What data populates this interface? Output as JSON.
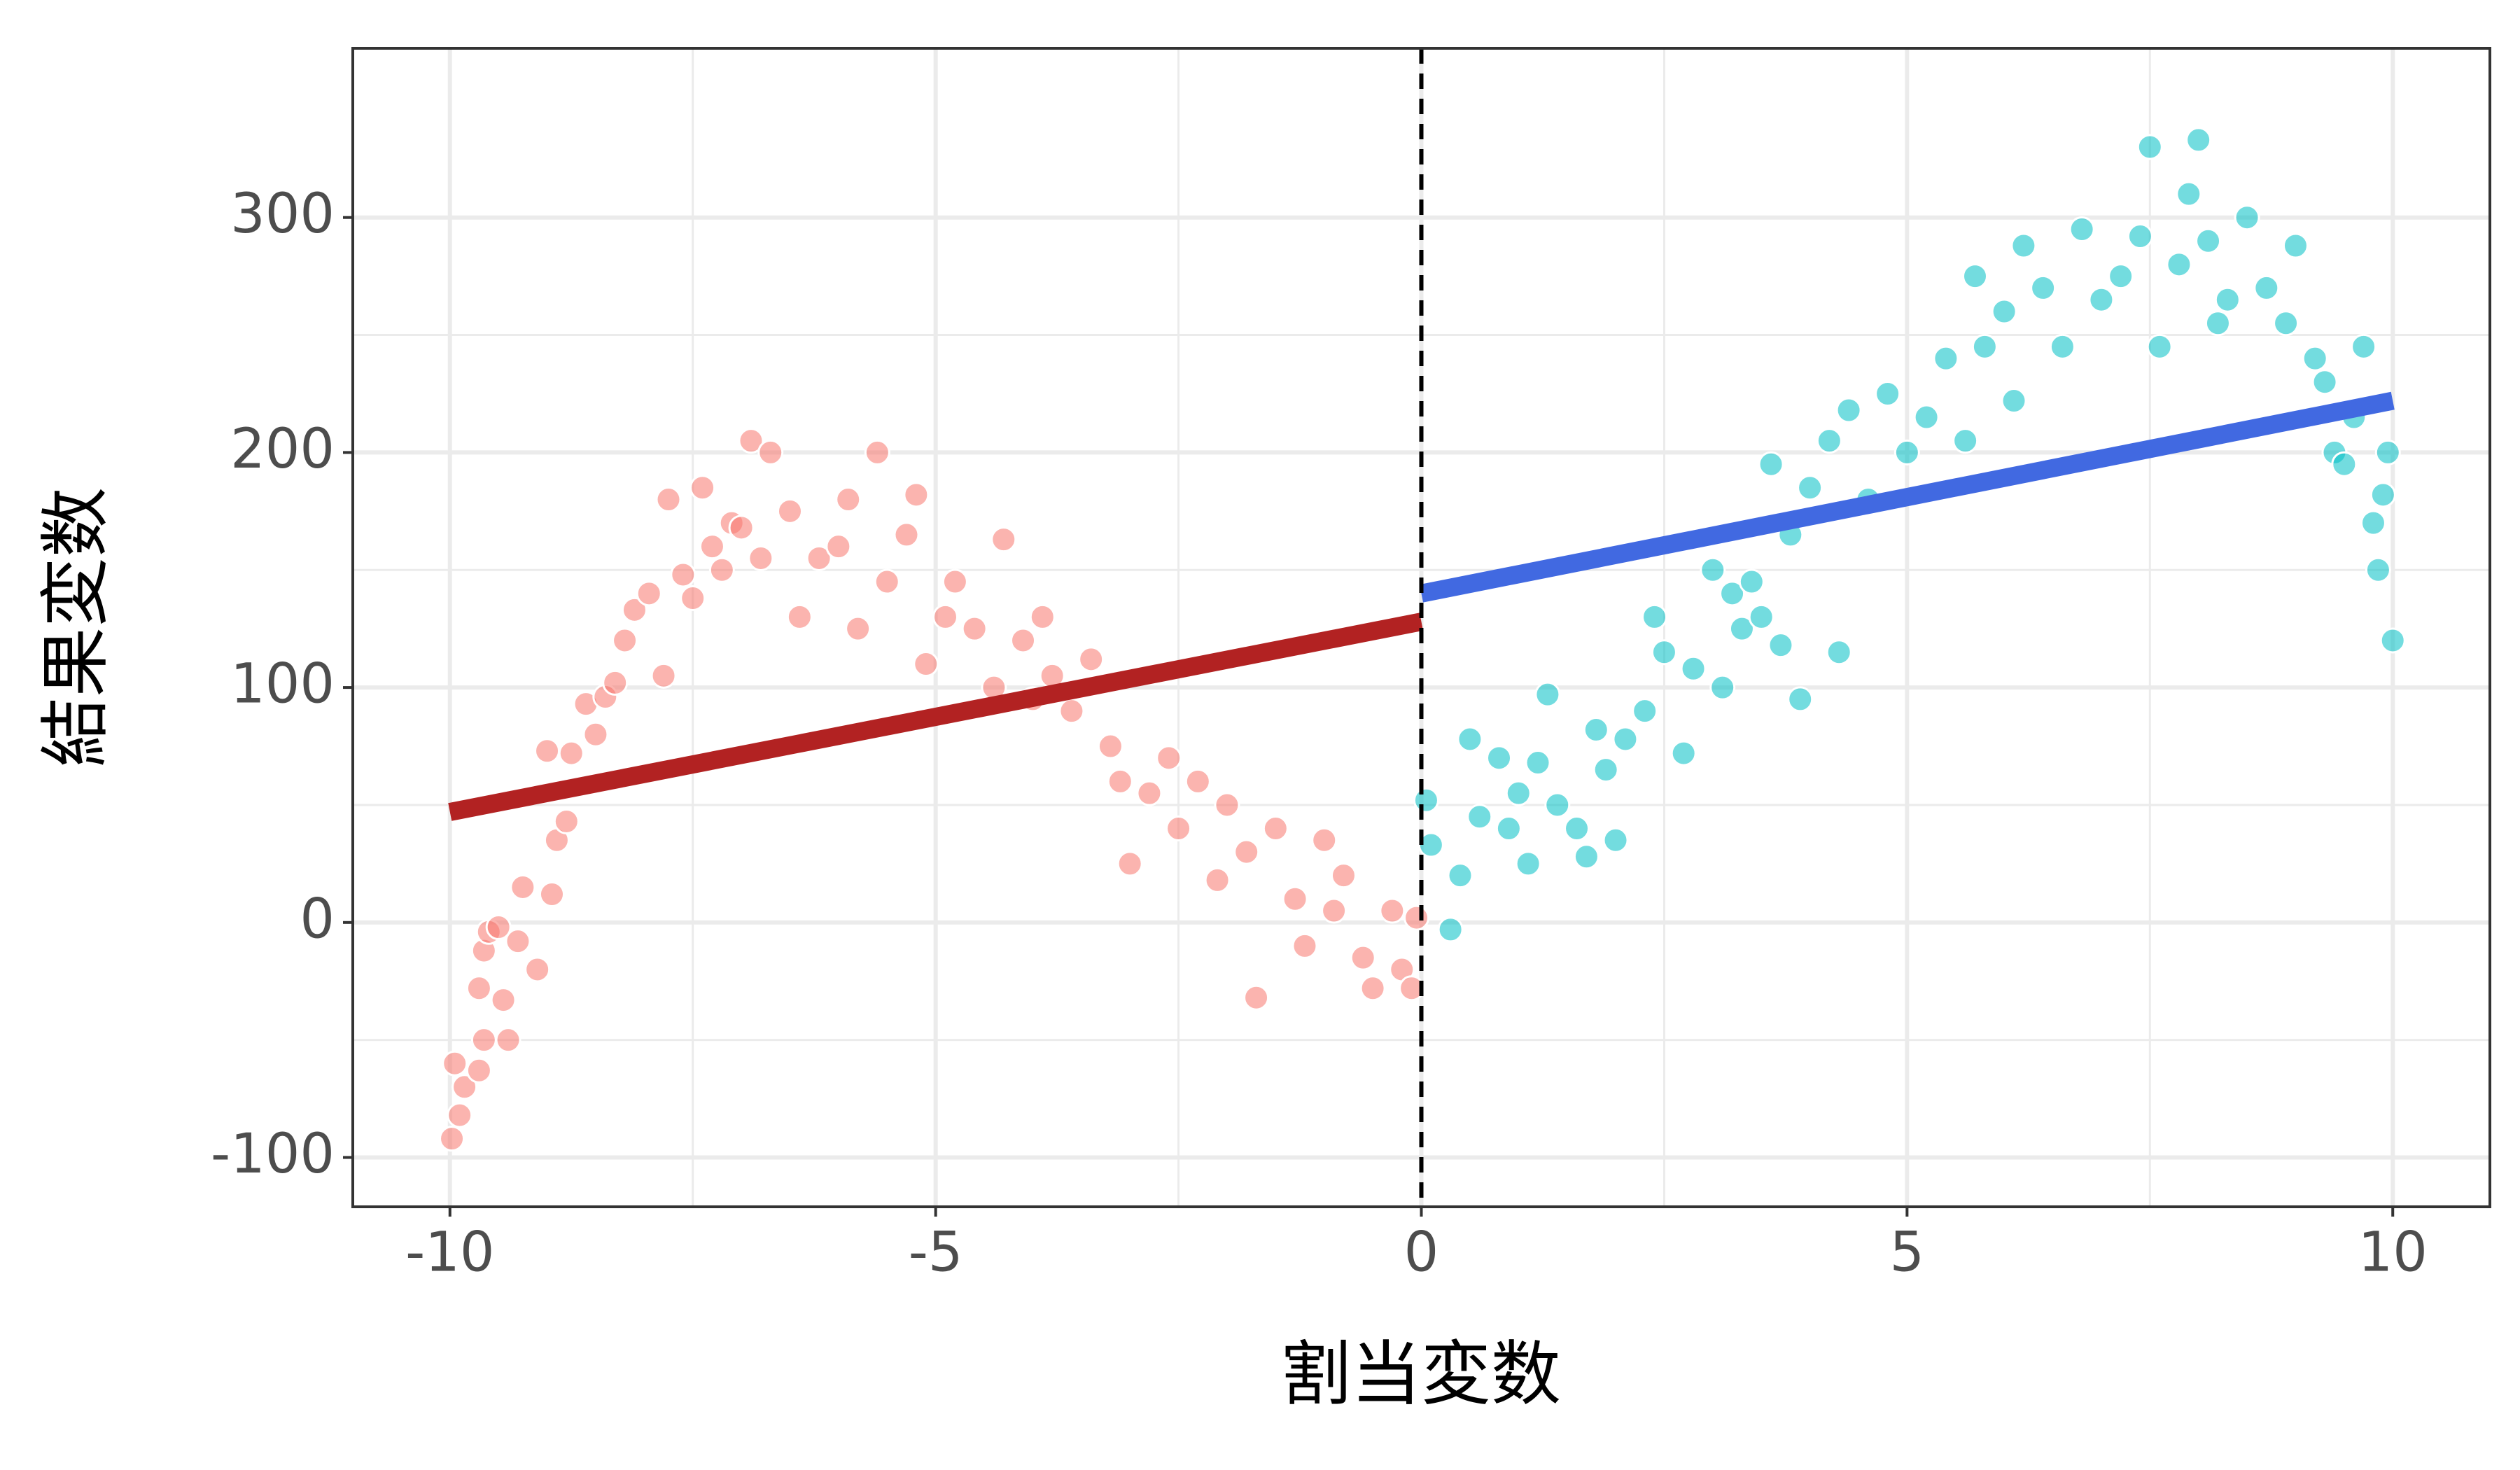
{
  "chart_data": {
    "type": "scatter",
    "xlabel": "割当変数",
    "ylabel": "結果変数",
    "xlim": [
      -11,
      11
    ],
    "ylim": [
      -121,
      372
    ],
    "xticks": [
      -10,
      -5,
      0,
      5,
      10
    ],
    "yticks": [
      -100,
      0,
      100,
      200,
      300
    ],
    "xminor": [
      -7.5,
      -2.5,
      2.5,
      7.5
    ],
    "yminor": [
      -50,
      50,
      150,
      250
    ],
    "grid": true,
    "cutoff": 0,
    "series": [
      {
        "color": "#F8766D",
        "x": [
          -9.98,
          -9.95,
          -9.9,
          -9.85,
          -9.7,
          -9.65,
          -9.7,
          -9.65,
          -9.6,
          -9.5,
          -9.45,
          -9.4,
          -9.3,
          -9.25,
          -9.1,
          -9.0,
          -8.9,
          -8.95,
          -8.8,
          -8.75,
          -8.6,
          -8.5,
          -8.4,
          -8.3,
          -8.2,
          -8.1,
          -7.95,
          -7.8,
          -7.75,
          -7.6,
          -7.5,
          -7.4,
          -7.3,
          -7.2,
          -7.1,
          -7.0,
          -6.9,
          -6.8,
          -6.7,
          -6.5,
          -6.4,
          -6.2,
          -6.0,
          -5.9,
          -5.8,
          -5.6,
          -5.5,
          -5.3,
          -5.2,
          -5.1,
          -4.9,
          -4.8,
          -4.6,
          -4.4,
          -4.3,
          -4.1,
          -4.0,
          -3.9,
          -3.8,
          -3.6,
          -3.4,
          -3.2,
          -3.1,
          -3.0,
          -2.8,
          -2.6,
          -2.5,
          -2.3,
          -2.1,
          -2.0,
          -1.8,
          -1.7,
          -1.5,
          -1.3,
          -1.2,
          -1.0,
          -0.9,
          -0.8,
          -0.6,
          -0.5,
          -0.3,
          -0.2,
          -0.1,
          -0.05
        ],
        "values": [
          -92,
          -60,
          -82,
          -70,
          -63,
          -50,
          -28,
          -12,
          -4,
          -2,
          -33,
          -50,
          -8,
          15,
          -20,
          73,
          35,
          12,
          43,
          72,
          93,
          80,
          96,
          102,
          120,
          133,
          140,
          105,
          180,
          148,
          138,
          185,
          160,
          150,
          170,
          168,
          205,
          155,
          200,
          175,
          130,
          155,
          160,
          180,
          125,
          200,
          145,
          165,
          182,
          110,
          130,
          145,
          125,
          100,
          163,
          120,
          95,
          130,
          105,
          90,
          112,
          75,
          60,
          25,
          55,
          70,
          40,
          60,
          18,
          50,
          30,
          -32,
          40,
          10,
          -10,
          35,
          5,
          20,
          -15,
          -28,
          5,
          -20,
          -28,
          2
        ]
      },
      {
        "color": "#00BFC4",
        "x": [
          0.05,
          0.1,
          0.3,
          0.4,
          0.5,
          0.6,
          0.8,
          0.9,
          1.0,
          1.1,
          1.2,
          1.3,
          1.4,
          1.6,
          1.7,
          1.8,
          1.9,
          2.0,
          2.1,
          2.3,
          2.4,
          2.5,
          2.7,
          2.8,
          3.0,
          3.1,
          3.2,
          3.3,
          3.4,
          3.5,
          3.6,
          3.7,
          3.8,
          3.9,
          4.0,
          4.2,
          4.3,
          4.4,
          4.6,
          4.8,
          5.0,
          5.2,
          5.4,
          5.6,
          5.7,
          5.8,
          6.0,
          6.1,
          6.2,
          6.4,
          6.6,
          6.8,
          7.0,
          7.2,
          7.4,
          7.5,
          7.6,
          7.8,
          7.9,
          8.0,
          8.1,
          8.2,
          8.3,
          8.5,
          8.7,
          8.9,
          9.0,
          9.2,
          9.3,
          9.4,
          9.5,
          9.6,
          9.7,
          9.8,
          9.85,
          9.9,
          9.95,
          10.0
        ],
        "values": [
          52,
          33,
          -3,
          20,
          78,
          45,
          70,
          40,
          55,
          25,
          68,
          97,
          50,
          40,
          28,
          82,
          65,
          35,
          78,
          90,
          130,
          115,
          72,
          108,
          150,
          100,
          140,
          125,
          145,
          130,
          195,
          118,
          165,
          95,
          185,
          205,
          115,
          218,
          180,
          225,
          200,
          215,
          240,
          205,
          275,
          245,
          260,
          222,
          288,
          270,
          245,
          295,
          265,
          275,
          292,
          330,
          245,
          280,
          310,
          333,
          290,
          255,
          265,
          300,
          270,
          255,
          288,
          240,
          230,
          200,
          195,
          215,
          245,
          170,
          150,
          182,
          200,
          120
        ]
      }
    ],
    "fits": [
      {
        "color": "#B22222",
        "x": [
          -10,
          0
        ],
        "values": [
          47,
          128
        ]
      },
      {
        "color": "#4169E1",
        "x": [
          0,
          10
        ],
        "values": [
          140,
          222
        ]
      }
    ]
  }
}
